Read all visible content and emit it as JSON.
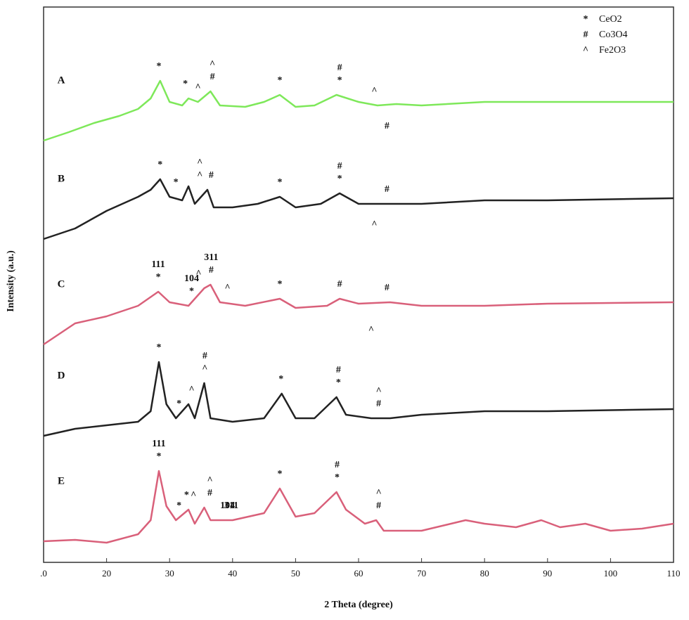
{
  "chart_data": {
    "type": "line",
    "xlabel": "2 Theta (degree)",
    "ylabel": "Intensity (a.u.)",
    "xlim": [
      10,
      110
    ],
    "xticks": [
      {
        "value": 10,
        "label": ".0"
      },
      20,
      30,
      40,
      50,
      60,
      70,
      80,
      90,
      100,
      110
    ],
    "ylim": [
      0,
      790
    ],
    "legend": [
      {
        "symbol": "*",
        "name": "CeO2"
      },
      {
        "symbol": "#",
        "name": "Co3O4"
      },
      {
        "symbol": "^",
        "name": "Fe2O3"
      }
    ],
    "series": [
      {
        "name": "A",
        "color": "#7ee85a",
        "x": [
          10,
          14,
          18,
          22,
          25,
          27,
          28.5,
          30,
          32,
          33,
          34.5,
          36.5,
          38,
          42,
          45,
          47.5,
          50,
          53,
          56.5,
          60,
          63,
          66,
          70,
          80,
          90,
          100,
          110
        ],
        "values": [
          600,
          612,
          625,
          635,
          645,
          660,
          685,
          655,
          650,
          660,
          655,
          670,
          650,
          648,
          655,
          665,
          648,
          650,
          665,
          655,
          650,
          652,
          650,
          655,
          655,
          655,
          655
        ],
        "markers": [
          {
            "x": 28.3,
            "text": "*"
          },
          {
            "x": 32.5,
            "text": "*"
          },
          {
            "x": 34.5,
            "text": "^"
          },
          {
            "x": 36.8,
            "text": "#"
          },
          {
            "x": 36.8,
            "text": "^"
          },
          {
            "x": 47.5,
            "text": "*"
          },
          {
            "x": 57,
            "text": "*"
          },
          {
            "x": 57,
            "text": "#"
          },
          {
            "x": 62.5,
            "text": "^"
          },
          {
            "x": 64.5,
            "text": "#"
          }
        ]
      },
      {
        "name": "B",
        "color": "#222222",
        "x": [
          10,
          15,
          20,
          25,
          27,
          28.5,
          30,
          32,
          33,
          34,
          36,
          37,
          40,
          44,
          47.5,
          50,
          54,
          57,
          60,
          64,
          70,
          80,
          90,
          110
        ],
        "values": [
          460,
          475,
          500,
          520,
          530,
          545,
          520,
          515,
          535,
          510,
          530,
          505,
          505,
          510,
          520,
          505,
          510,
          525,
          510,
          510,
          510,
          515,
          515,
          518
        ],
        "markers": [
          {
            "x": 28.5,
            "text": "*"
          },
          {
            "x": 31,
            "text": "*"
          },
          {
            "x": 34.8,
            "text": "^"
          },
          {
            "x": 34.8,
            "text": "^"
          },
          {
            "x": 36.6,
            "text": "#"
          },
          {
            "x": 47.5,
            "text": "*"
          },
          {
            "x": 57,
            "text": "*"
          },
          {
            "x": 57,
            "text": "#"
          },
          {
            "x": 62.5,
            "text": "^"
          },
          {
            "x": 64.5,
            "text": "#"
          }
        ]
      },
      {
        "name": "C",
        "color": "#d9607a",
        "x": [
          10,
          15,
          20,
          25,
          28.2,
          30,
          33,
          35.5,
          36.5,
          38,
          42,
          47.5,
          50,
          55,
          57,
          60,
          65,
          70,
          80,
          90,
          110
        ],
        "values": [
          310,
          340,
          350,
          365,
          385,
          370,
          365,
          390,
          395,
          370,
          365,
          375,
          362,
          365,
          375,
          368,
          370,
          365,
          365,
          368,
          370
        ],
        "markers": [
          {
            "x": 28.2,
            "text": "*"
          },
          {
            "x": 28.2,
            "text": "111"
          },
          {
            "x": 33.5,
            "text": "*"
          },
          {
            "x": 33.5,
            "text": "104"
          },
          {
            "x": 34.6,
            "text": "^"
          },
          {
            "x": 36.6,
            "text": "#"
          },
          {
            "x": 36.6,
            "text": "311"
          },
          {
            "x": 39.2,
            "text": "^"
          },
          {
            "x": 47.5,
            "text": "*"
          },
          {
            "x": 57,
            "text": "#"
          },
          {
            "x": 62,
            "text": "^"
          },
          {
            "x": 64.5,
            "text": "#"
          }
        ]
      },
      {
        "name": "D",
        "color": "#222222",
        "x": [
          10,
          15,
          20,
          25,
          27,
          28.3,
          29.5,
          31,
          33,
          34,
          35.5,
          36.5,
          40,
          45,
          47.8,
          50,
          53,
          56.5,
          58,
          62,
          65,
          70,
          80,
          90,
          110
        ],
        "values": [
          180,
          190,
          195,
          200,
          215,
          285,
          225,
          205,
          225,
          205,
          255,
          205,
          200,
          205,
          240,
          205,
          205,
          235,
          210,
          205,
          205,
          210,
          215,
          215,
          218
        ],
        "markers": [
          {
            "x": 28.3,
            "text": "*"
          },
          {
            "x": 31.5,
            "text": "*"
          },
          {
            "x": 33.5,
            "text": "^"
          },
          {
            "x": 35.6,
            "text": "^"
          },
          {
            "x": 35.6,
            "text": "#"
          },
          {
            "x": 47.7,
            "text": "*"
          },
          {
            "x": 56.8,
            "text": "*"
          },
          {
            "x": 56.8,
            "text": "#"
          },
          {
            "x": 63.2,
            "text": "#"
          },
          {
            "x": 63.2,
            "text": "^"
          }
        ]
      },
      {
        "name": "E",
        "color": "#d9607a",
        "x": [
          10,
          15,
          20,
          25,
          27,
          28.3,
          29.5,
          31,
          33,
          34,
          35.5,
          36.5,
          40,
          45,
          47.5,
          50,
          53,
          56.5,
          58,
          61,
          62.8,
          64,
          70,
          77,
          80,
          85,
          89,
          92,
          96,
          100,
          105,
          110
        ],
        "values": [
          30,
          32,
          28,
          40,
          60,
          130,
          80,
          60,
          75,
          55,
          78,
          60,
          60,
          70,
          105,
          65,
          70,
          100,
          75,
          55,
          60,
          45,
          45,
          60,
          55,
          50,
          60,
          50,
          55,
          45,
          48,
          55
        ],
        "markers": [
          {
            "x": 28.3,
            "text": "*"
          },
          {
            "x": 28.3,
            "text": "111"
          },
          {
            "x": 31.5,
            "text": "*"
          },
          {
            "x": 32.7,
            "text": "*"
          },
          {
            "x": 33.8,
            "text": "^"
          },
          {
            "x": 36.4,
            "text": "#"
          },
          {
            "x": 36.4,
            "text": "^"
          },
          {
            "x": 39.8,
            "text": "311"
          },
          {
            "x": 39.2,
            "text": "104"
          },
          {
            "x": 47.5,
            "text": "*"
          },
          {
            "x": 56.6,
            "text": "*"
          },
          {
            "x": 56.6,
            "text": "#"
          },
          {
            "x": 63.2,
            "text": "#"
          },
          {
            "x": 63.2,
            "text": "^"
          }
        ]
      }
    ]
  }
}
